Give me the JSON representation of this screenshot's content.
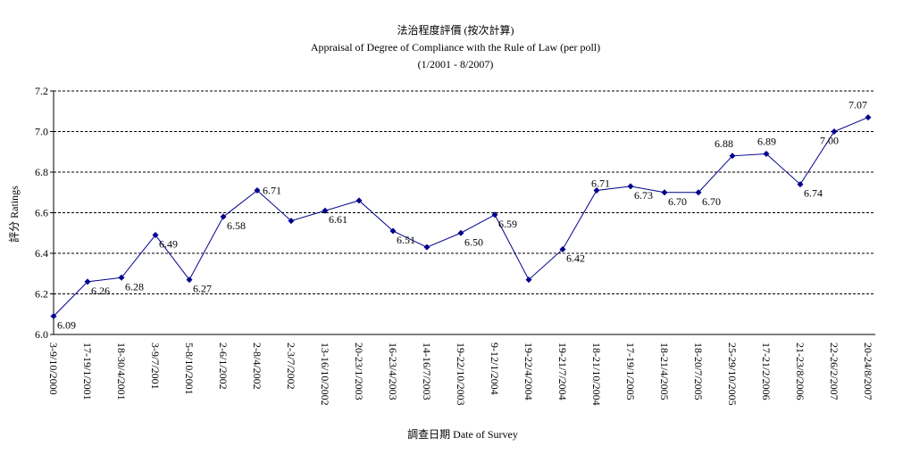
{
  "chart_data": {
    "type": "line",
    "title": "法治程度評價 (按次計算)",
    "subtitle": "Appraisal of Degree of Compliance with the Rule of Law (per poll)",
    "period": "(1/2001 - 8/2007)",
    "y_label": "評分 Ratings",
    "x_label": "調查日期 Date of Survey",
    "categories": [
      "3-9/10/2000",
      "17-19/1/2001",
      "18-30/4/2001",
      "3-9/7/2001",
      "5-8/10/2001",
      "2-6/1/2002",
      "2-8/4/2002",
      "2-3/7/2002",
      "13-16/10/2002",
      "20-23/1/2003",
      "16-23/4/2003",
      "14-16/7/2003",
      "19-22/10/2003",
      "9-12/1/2004",
      "19-22/4/2004",
      "19-21/7/2004",
      "18-21/10/2004",
      "17-19/1/2005",
      "18-21/4/2005",
      "18-20/7/2005",
      "25-29/10/2005",
      "17-21/2/2006",
      "21-23/8/2006",
      "22-26/2/2007",
      "20-24/8/2007"
    ],
    "series": [
      {
        "name": "Ratings",
        "color": "#00008b",
        "values": [
          6.09,
          6.26,
          6.28,
          6.49,
          6.27,
          6.58,
          6.71,
          6.56,
          6.61,
          6.66,
          6.51,
          6.43,
          6.5,
          6.59,
          6.27,
          6.42,
          6.71,
          6.73,
          6.7,
          6.7,
          6.88,
          6.89,
          6.74,
          7.0,
          7.07
        ],
        "value_labels": [
          "6.09",
          "6.26",
          "6.28",
          "6.49",
          "6.27",
          "6.58",
          "6.71",
          null,
          "6.61",
          null,
          "6.51",
          null,
          "6.50",
          "6.59",
          null,
          "6.42",
          "6.71",
          "6.73",
          "6.70",
          "6.70",
          "6.88",
          "6.89",
          "6.74",
          "7.00",
          "7.07"
        ]
      }
    ],
    "ylim": [
      6.0,
      7.2
    ],
    "yticks": [
      {
        "value": 6.0,
        "label": "6.0"
      },
      {
        "value": 6.2,
        "label": "6.2"
      },
      {
        "value": 6.4,
        "label": "6.4"
      },
      {
        "value": 6.6,
        "label": "6.6"
      },
      {
        "value": 6.8,
        "label": "6.8"
      },
      {
        "value": 7.0,
        "label": "7.0"
      },
      {
        "value": 7.2,
        "label": "7.2"
      }
    ],
    "grid": true
  }
}
